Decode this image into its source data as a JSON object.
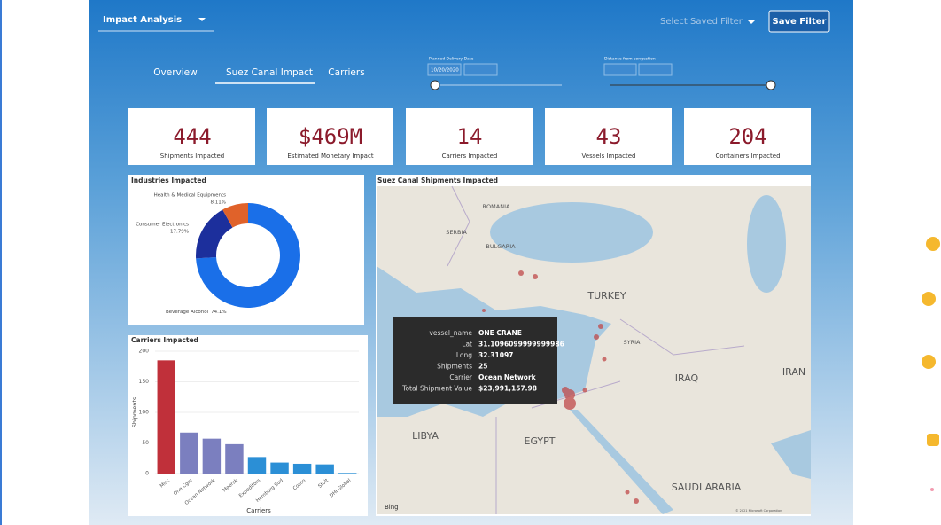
{
  "header": {
    "dropdown": "Impact Analysis",
    "saved_filter": "Select Saved Filter",
    "save_button": "Save Filter"
  },
  "tabs": [
    "Overview",
    "Suez Canal Impact",
    "Carriers"
  ],
  "filters": [
    {
      "label": "Planned Delivery Date",
      "from": "10/20/2020"
    },
    {
      "label": "Distance from congestion"
    }
  ],
  "kpis": [
    {
      "value": "444",
      "label": "Shipments Impacted"
    },
    {
      "value": "$469M",
      "label": "Estimated Monetary Impact"
    },
    {
      "value": "14",
      "label": "Carriers Impacted"
    },
    {
      "value": "43",
      "label": "Vessels Impacted"
    },
    {
      "value": "204",
      "label": "Containers Impacted"
    }
  ],
  "chart_data": [
    {
      "type": "pie",
      "title": "Industries Impacted",
      "categories": [
        "Beverage Alcohol",
        "Consumer Electronics",
        "Health & Medical Equipments"
      ],
      "values": [
        74.1,
        17.79,
        8.11
      ],
      "value_labels": [
        "74.1%",
        "17.79%",
        "8.11%"
      ],
      "colors": [
        "#1a6fe8",
        "#1c2f9c",
        "#e0622a"
      ]
    },
    {
      "type": "bar",
      "title": "Carriers Impacted",
      "categories": [
        "Misc",
        "One Cgm",
        "Ocean Network",
        "Maersk",
        "Expeditors",
        "Hamburg Sud",
        "Cosco",
        "Stolt",
        "DHI Global"
      ],
      "values": [
        185,
        67,
        57,
        48,
        27,
        18,
        16,
        15,
        1
      ],
      "colors": [
        "#c0303a",
        "#7b7fbf",
        "#7b7fbf",
        "#7b7fbf",
        "#2b8fd6",
        "#2b8fd6",
        "#2b8fd6",
        "#2b8fd6",
        "#2b8fd6"
      ],
      "ylim": [
        0,
        200
      ],
      "yticks": [
        0,
        50,
        100,
        150,
        200
      ],
      "ylabel": "Shipments",
      "xlabel": "Carriers"
    }
  ],
  "map": {
    "title": "Suez Canal Shipments Impacted",
    "labels": [
      "ROMANIA",
      "SERBIA",
      "BULGARIA",
      "TURKEY",
      "SYRIA",
      "IRAQ",
      "IRAN",
      "LIBYA",
      "EGYPT",
      "SAUDI ARABIA"
    ],
    "attribution": "Bing",
    "copyright": "© 2021 Microsoft Corporation"
  },
  "tooltip": [
    {
      "key": "vessel_name",
      "value": "ONE CRANE"
    },
    {
      "key": "Lat",
      "value": "31.1096099999999986"
    },
    {
      "key": "Long",
      "value": "32.31097"
    },
    {
      "key": "Shipments",
      "value": "25"
    },
    {
      "key": "Carrier",
      "value": "Ocean Network"
    },
    {
      "key": "Total Shipment Value",
      "value": "$23,991,157.98"
    }
  ]
}
